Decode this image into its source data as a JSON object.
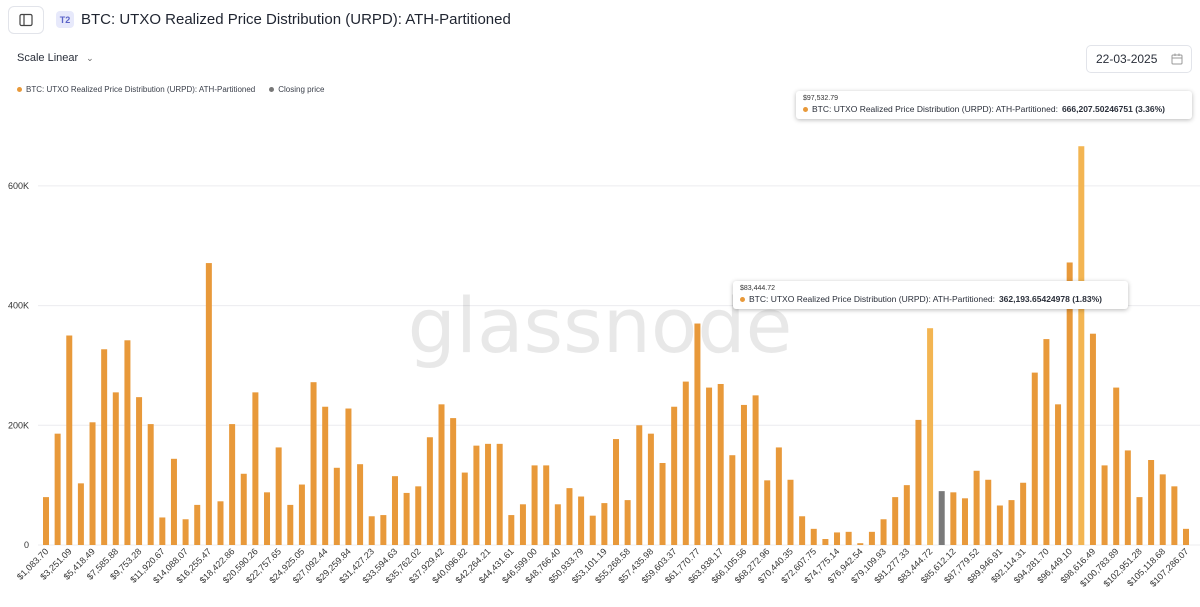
{
  "header": {
    "tier_badge": "T2",
    "title": "BTC: UTXO Realized Price Distribution (URPD): ATH-Partitioned",
    "sidebar_toggle_icon": "sidebar-panel-icon"
  },
  "controls": {
    "scale_label": "Scale Linear",
    "date_value": "22-03-2025",
    "date_icon": "calendar-icon"
  },
  "legend": [
    {
      "label": "BTC: UTXO Realized Price Distribution (URPD): ATH-Partitioned",
      "color": "#e8993a"
    },
    {
      "label": "Closing price",
      "color": "#777777"
    }
  ],
  "watermark": "glassnode",
  "tooltips": [
    {
      "price": "$97,532.79",
      "label": "BTC: UTXO Realized Price Distribution (URPD): ATH-Partitioned:",
      "value": "666,207.50246751 (3.36%)"
    },
    {
      "price": "$83,444.72",
      "label": "BTC: UTXO Realized Price Distribution (URPD): ATH-Partitioned:",
      "value": "362,193.65424978 (1.83%)"
    }
  ],
  "colors": {
    "bar": "#e8993a",
    "highlight": "#f3b552",
    "closing": "#7a7a7a",
    "grid": "#ececef"
  },
  "chart_data": {
    "type": "bar",
    "ylim": [
      0,
      700000
    ],
    "y_ticks": [
      0,
      200000,
      400000,
      600000
    ],
    "y_tick_labels": [
      "0",
      "200K",
      "400K",
      "600K"
    ],
    "x_tick_labels": [
      "$1,083.70",
      "$3,251.09",
      "$5,418.49",
      "$7,585.88",
      "$9,753.28",
      "$11,920.67",
      "$14,088.07",
      "$16,255.47",
      "$18,422.86",
      "$20,590.26",
      "$22,757.65",
      "$24,925.05",
      "$27,092.44",
      "$29,259.84",
      "$31,427.23",
      "$33,594.63",
      "$35,762.02",
      "$37,929.42",
      "$40,096.82",
      "$42,264.21",
      "$44,431.61",
      "$46,599.00",
      "$48,766.40",
      "$50,933.79",
      "$53,101.19",
      "$55,268.58",
      "$57,435.98",
      "$59,603.37",
      "$61,770.77",
      "$63,938.17",
      "$66,105.56",
      "$68,272.96",
      "$70,440.35",
      "$72,607.75",
      "$74,775.14",
      "$76,942.54",
      "$79,109.93",
      "$81,277.33",
      "$83,444.72",
      "$85,612.12",
      "$87,779.52",
      "$89,946.91",
      "$92,114.31",
      "$94,281.70",
      "$96,449.10",
      "$98,616.49",
      "$100,783.89",
      "$102,951.28",
      "$105,118.68",
      "$107,286.07"
    ],
    "values": [
      80000,
      186000,
      350000,
      103000,
      205000,
      327000,
      255000,
      342000,
      247000,
      202000,
      46000,
      144000,
      43000,
      67000,
      471000,
      73000,
      202000,
      119000,
      255000,
      88000,
      163000,
      67000,
      101000,
      272000,
      231000,
      129000,
      228000,
      135000,
      48000,
      50000,
      115000,
      87000,
      98000,
      180000,
      235000,
      212000,
      121000,
      166000,
      169000,
      169000,
      50000,
      68000,
      133000,
      133000,
      68000,
      95000,
      81000,
      49000,
      70000,
      177000,
      75000,
      200000,
      186000,
      137000,
      231000,
      273000,
      370000,
      263000,
      269000,
      150000,
      234000,
      250000,
      108000,
      163000,
      109000,
      48000,
      27000,
      10000,
      21000,
      22000,
      3000,
      22000,
      43000,
      80000,
      100000,
      209000,
      362194,
      90000,
      88000,
      78000,
      124000,
      109000,
      66000,
      75000,
      104000,
      288000,
      344000,
      235000,
      472000,
      666208,
      353000,
      133000,
      263000,
      158000,
      80000,
      142000,
      118000,
      98000,
      27000
    ],
    "closing_price_index": 77,
    "highlight_indices": [
      76,
      89
    ]
  }
}
